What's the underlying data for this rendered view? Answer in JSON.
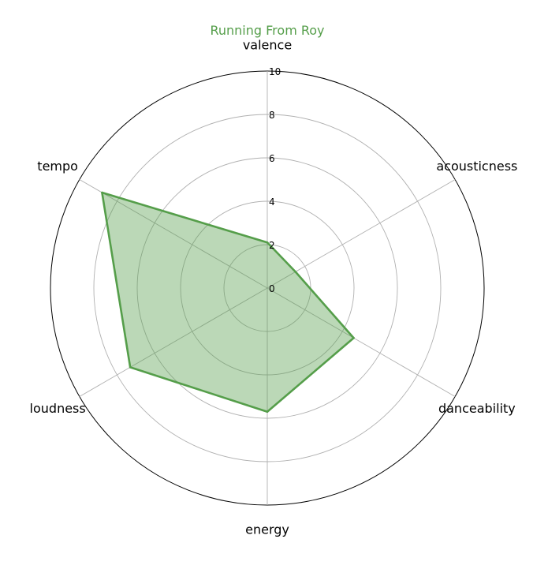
{
  "chart_data": {
    "type": "radar",
    "title": "Running From Roy",
    "title_color": "#559e4a",
    "series_color": "#559e4a",
    "fill_color": "#559e4a",
    "axes": [
      "valence",
      "acousticness",
      "danceability",
      "energy",
      "loudness",
      "tempo"
    ],
    "values": [
      2.1,
      1.5,
      4.6,
      5.7,
      7.3,
      8.8
    ],
    "rlim": [
      0,
      10
    ],
    "rticks": [
      "0",
      "2",
      "4",
      "6",
      "8",
      "10"
    ],
    "grid": true,
    "gridline_color": "#b0b0b0",
    "outer_circle_color": "#000000"
  }
}
